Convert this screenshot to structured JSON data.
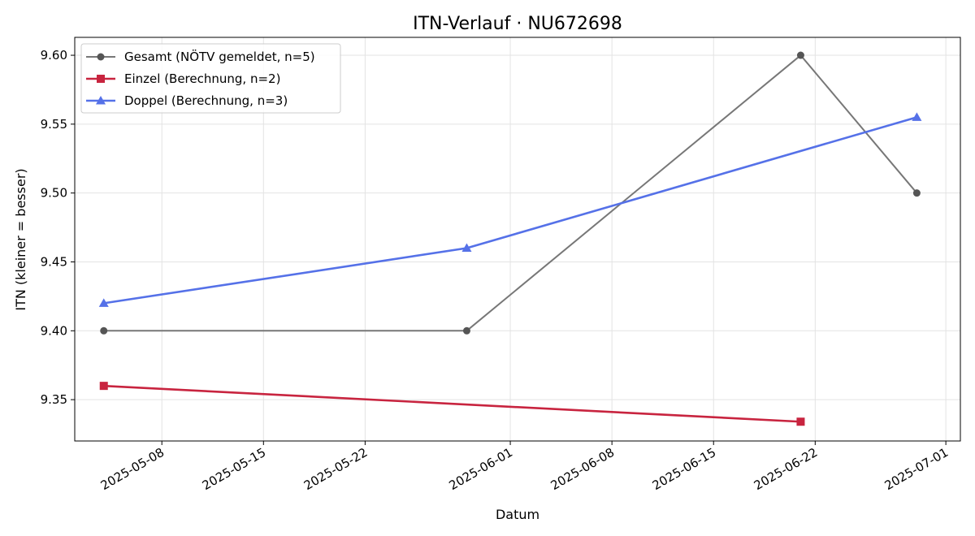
{
  "chart_data": {
    "type": "line",
    "title": "ITN-Verlauf · NU672698",
    "xlabel": "Datum",
    "ylabel": "ITN  (kleiner = besser)",
    "x_axis_type": "date",
    "xlim": [
      "2025-05-02",
      "2025-07-02"
    ],
    "ylim": [
      9.32,
      9.613
    ],
    "x_ticks": [
      "2025-05-08",
      "2025-05-15",
      "2025-05-22",
      "2025-06-01",
      "2025-06-08",
      "2025-06-15",
      "2025-06-22",
      "2025-07-01"
    ],
    "y_ticks": [
      "9.35",
      "9.40",
      "9.45",
      "9.50",
      "9.55",
      "9.60"
    ],
    "grid": true,
    "legend_position": "top-left",
    "series": [
      {
        "name": "Gesamt (NÖTV gemeldet, n=5)",
        "color": "#777777",
        "marker": "circle",
        "points": [
          {
            "x": "2025-05-04",
            "y": 9.4
          },
          {
            "x": "2025-05-29",
            "y": 9.4
          },
          {
            "x": "2025-06-21",
            "y": 9.6
          },
          {
            "x": "2025-06-29",
            "y": 9.5
          }
        ]
      },
      {
        "name": "Einzel (Berechnung, n=2)",
        "color": "#c8243f",
        "marker": "square",
        "points": [
          {
            "x": "2025-05-04",
            "y": 9.36
          },
          {
            "x": "2025-06-21",
            "y": 9.334
          }
        ]
      },
      {
        "name": "Doppel (Berechnung, n=3)",
        "color": "#5571e8",
        "marker": "triangle",
        "points": [
          {
            "x": "2025-05-04",
            "y": 9.42
          },
          {
            "x": "2025-05-29",
            "y": 9.46
          },
          {
            "x": "2025-06-29",
            "y": 9.555
          }
        ]
      }
    ]
  }
}
